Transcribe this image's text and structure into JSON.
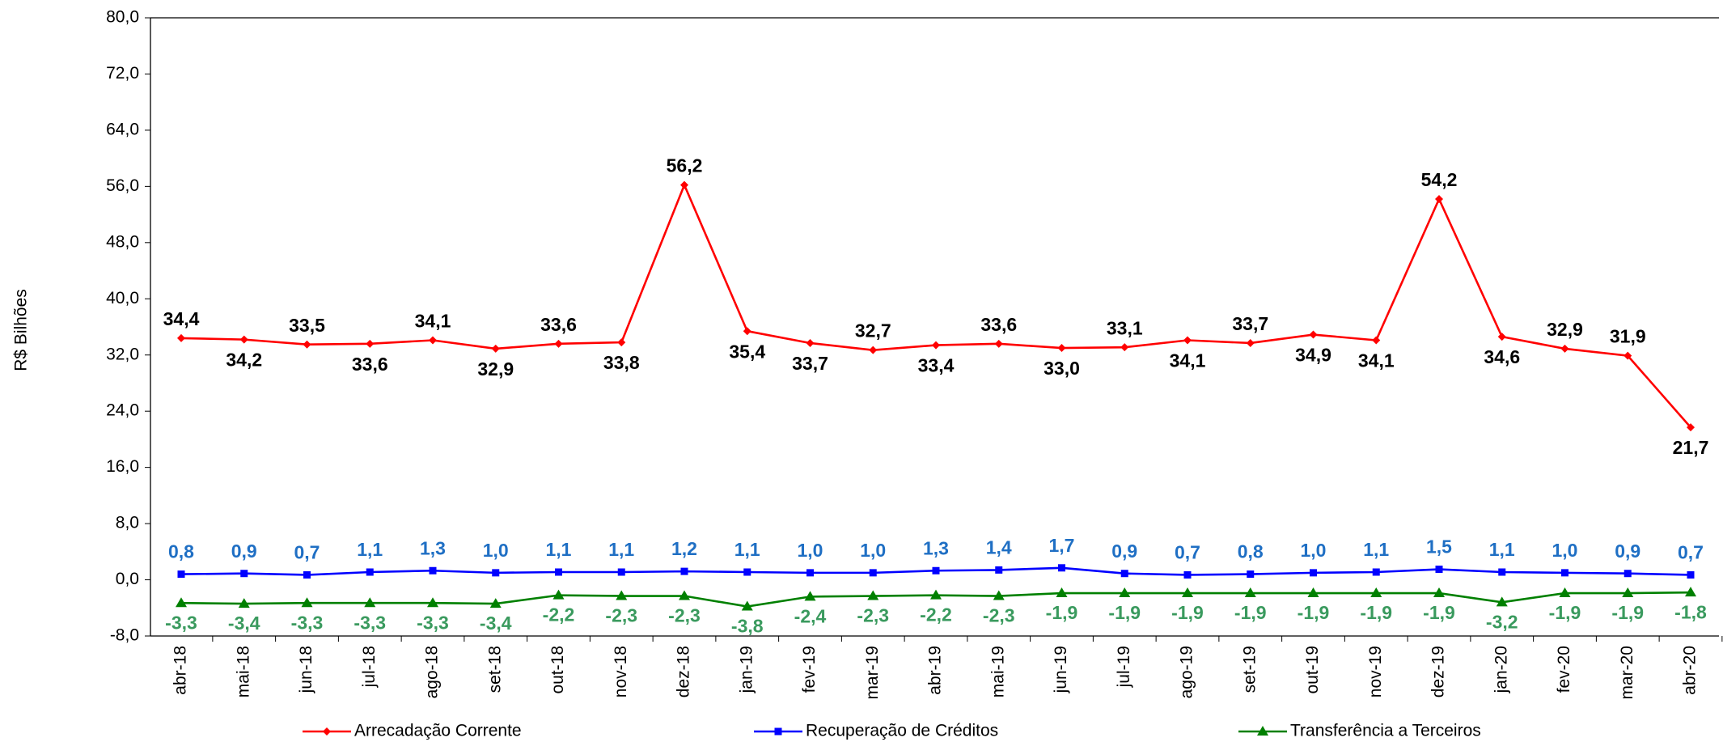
{
  "chart_data": {
    "type": "line",
    "y_label": "R$ Bilhões",
    "categories": [
      "abr-18",
      "mai-18",
      "jun-18",
      "jul-18",
      "ago-18",
      "set-18",
      "out-18",
      "nov-18",
      "dez-18",
      "jan-19",
      "fev-19",
      "mar-19",
      "abr-19",
      "mai-19",
      "jun-19",
      "jul-19",
      "ago-19",
      "set-19",
      "out-19",
      "nov-19",
      "dez-19",
      "jan-20",
      "fev-20",
      "mar-20",
      "abr-20"
    ],
    "series": [
      {
        "name": "Arrecadação Corrente",
        "color": "#ff0000",
        "label_color": "#000000",
        "marker": "diamond",
        "values": [
          34.4,
          34.2,
          33.5,
          33.6,
          34.1,
          32.9,
          33.6,
          33.8,
          56.2,
          35.4,
          33.7,
          32.7,
          33.4,
          33.6,
          33.0,
          33.1,
          34.1,
          33.7,
          34.9,
          34.1,
          54.2,
          34.6,
          32.9,
          31.9,
          21.7
        ],
        "value_labels": [
          "34,4",
          "34,2",
          "33,5",
          "33,6",
          "34,1",
          "32,9",
          "33,6",
          "33,8",
          "56,2",
          "35,4",
          "33,7",
          "32,7",
          "33,4",
          "33,6",
          "33,0",
          "33,1",
          "34,1",
          "33,7",
          "34,9",
          "34,1",
          "54,2",
          "34,6",
          "32,9",
          "31,9",
          "21,7"
        ]
      },
      {
        "name": "Recuperação de Créditos",
        "color": "#0000ff",
        "label_color": "#1f6fc4",
        "marker": "square",
        "values": [
          0.8,
          0.9,
          0.7,
          1.1,
          1.3,
          1.0,
          1.1,
          1.1,
          1.2,
          1.1,
          1.0,
          1.0,
          1.3,
          1.4,
          1.7,
          0.9,
          0.7,
          0.8,
          1.0,
          1.1,
          1.5,
          1.1,
          1.0,
          0.9,
          0.7
        ],
        "value_labels": [
          "0,8",
          "0,9",
          "0,7",
          "1,1",
          "1,3",
          "1,0",
          "1,1",
          "1,1",
          "1,2",
          "1,1",
          "1,0",
          "1,0",
          "1,3",
          "1,4",
          "1,7",
          "0,9",
          "0,7",
          "0,8",
          "1,0",
          "1,1",
          "1,5",
          "1,1",
          "1,0",
          "0,9",
          "0,7"
        ]
      },
      {
        "name": "Transferência a Terceiros",
        "color": "#008000",
        "label_color": "#3a9a5e",
        "marker": "triangle",
        "values": [
          -3.3,
          -3.4,
          -3.3,
          -3.3,
          -3.3,
          -3.4,
          -2.2,
          -2.3,
          -2.3,
          -3.8,
          -2.4,
          -2.3,
          -2.2,
          -2.3,
          -1.9,
          -1.9,
          -1.9,
          -1.9,
          -1.9,
          -1.9,
          -1.9,
          -3.2,
          -1.9,
          -1.9,
          -1.8
        ],
        "value_labels": [
          "-3,3",
          "-3,4",
          "-3,3",
          "-3,3",
          "-3,3",
          "-3,4",
          "-2,2",
          "-2,3",
          "-2,3",
          "-3,8",
          "-2,4",
          "-2,3",
          "-2,2",
          "-2,3",
          "-1,9",
          "-1,9",
          "-1,9",
          "-1,9",
          "-1,9",
          "-1,9",
          "-1,9",
          "-3,2",
          "-1,9",
          "-1,9",
          "-1,8"
        ]
      }
    ],
    "ylim": [
      -8,
      80
    ],
    "yticks": [
      {
        "value": -8,
        "label": "-8,0"
      },
      {
        "value": 0,
        "label": "0,0"
      },
      {
        "value": 8,
        "label": "8,0"
      },
      {
        "value": 16,
        "label": "16,0"
      },
      {
        "value": 24,
        "label": "24,0"
      },
      {
        "value": 32,
        "label": "32,0"
      },
      {
        "value": 40,
        "label": "40,0"
      },
      {
        "value": 48,
        "label": "48,0"
      },
      {
        "value": 56,
        "label": "56,0"
      },
      {
        "value": 64,
        "label": "64,0"
      },
      {
        "value": 72,
        "label": "72,0"
      },
      {
        "value": 80,
        "label": "80,0"
      }
    ]
  }
}
